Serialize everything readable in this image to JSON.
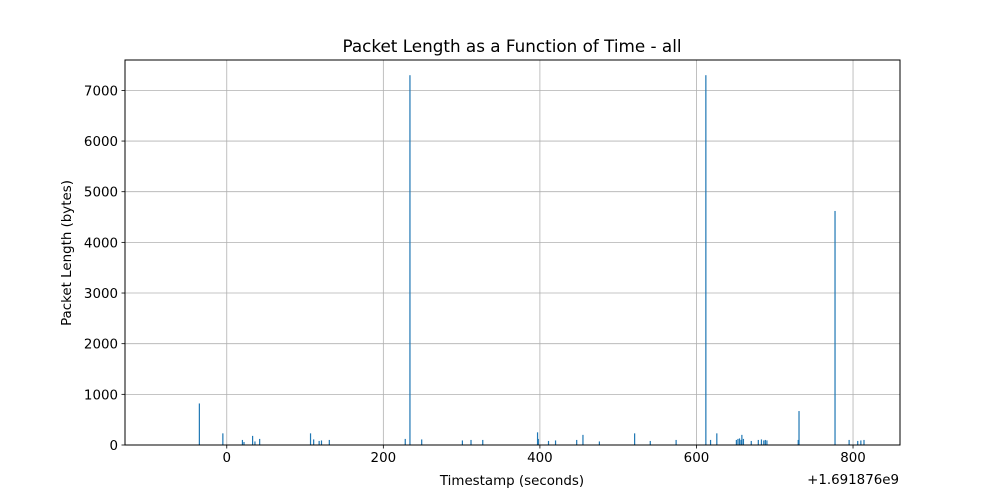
{
  "chart_data": {
    "type": "bar",
    "title": "Packet Length as a Function of Time - all",
    "xlabel": "Timestamp (seconds)",
    "ylabel": "Packet Length (bytes)",
    "x_offset_label": "+1.691876e9",
    "xlim": [
      -130,
      860
    ],
    "ylim": [
      0,
      7600
    ],
    "xticks": [
      0,
      200,
      400,
      600,
      800
    ],
    "xtick_labels": [
      "0",
      "200",
      "400",
      "600",
      "800"
    ],
    "yticks": [
      0,
      1000,
      2000,
      3000,
      4000,
      5000,
      6000,
      7000
    ],
    "ytick_labels": [
      "0",
      "1000",
      "2000",
      "3000",
      "4000",
      "5000",
      "6000",
      "7000"
    ],
    "grid": true,
    "bar_color": "#1f77b4",
    "series": [
      {
        "x": [
          -35,
          -5,
          20,
          22,
          33,
          36,
          42,
          107,
          111,
          118,
          121,
          131,
          228,
          234,
          249,
          301,
          312,
          327,
          397,
          398,
          411,
          420,
          447,
          455,
          476,
          521,
          541,
          574,
          612,
          618,
          626,
          651,
          653,
          655,
          657,
          658,
          660,
          670,
          679,
          683,
          686,
          688,
          690,
          730,
          731,
          777,
          795,
          806,
          810,
          814
        ],
        "values": [
          820,
          230,
          100,
          60,
          180,
          70,
          120,
          230,
          110,
          80,
          90,
          100,
          120,
          7300,
          110,
          90,
          100,
          100,
          250,
          120,
          80,
          90,
          100,
          200,
          70,
          230,
          80,
          100,
          7300,
          100,
          230,
          100,
          120,
          130,
          100,
          200,
          120,
          80,
          100,
          110,
          90,
          100,
          90,
          100,
          670,
          4620,
          100,
          80,
          90,
          100
        ]
      }
    ]
  }
}
